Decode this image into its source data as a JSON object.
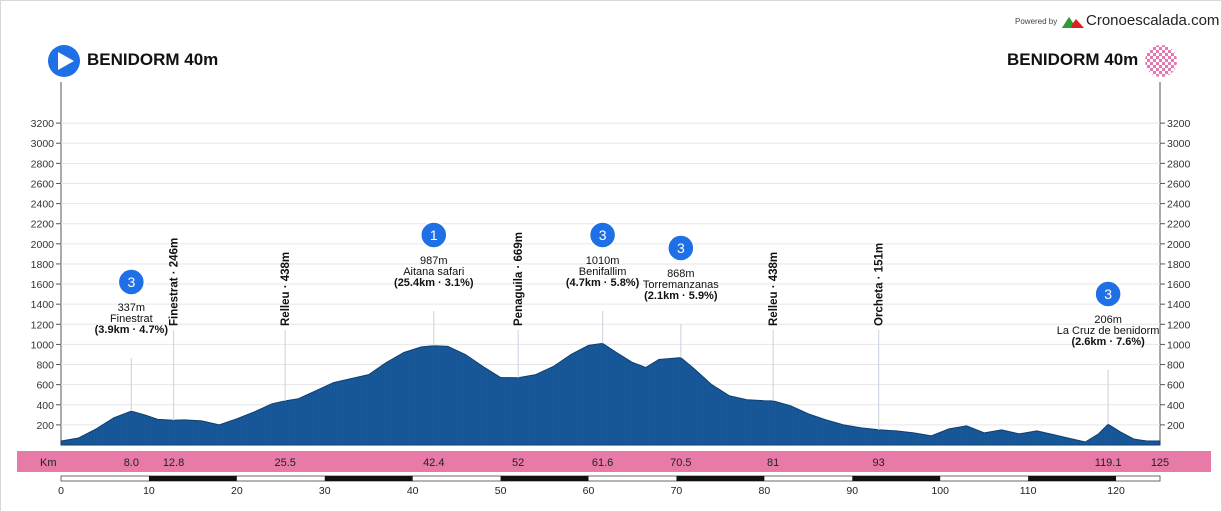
{
  "branding": {
    "powered_by": "Powered by",
    "brand": "Cronoescalada.com"
  },
  "start": {
    "label": "BENIDORM 40m"
  },
  "finish": {
    "label": "BENIDORM 40m"
  },
  "colors": {
    "profile": "#155596",
    "profile_dark": "#0b3c6e",
    "km_band": "#e87aa8",
    "badge": "#1f6fe6"
  },
  "icons": {
    "start": "play-circle-icon",
    "finish": "checkered-flag-icon",
    "climb": "category-badge"
  },
  "chart_data": {
    "type": "area",
    "xlabel": "Km",
    "xlim": [
      0,
      125
    ],
    "ylim": [
      0,
      3400
    ],
    "y_ticks": [
      200,
      400,
      600,
      800,
      1000,
      1200,
      1400,
      1600,
      1800,
      2000,
      2200,
      2400,
      2600,
      2800,
      3000,
      3200
    ],
    "x_scale_ticks": [
      0,
      10,
      20,
      30,
      40,
      50,
      60,
      70,
      80,
      90,
      100,
      110,
      120
    ],
    "km_labels": [
      "8.0",
      "12.8",
      "25.5",
      "42.4",
      "52",
      "61.6",
      "70.5",
      "81",
      "93",
      "119.1",
      "125"
    ],
    "profile": {
      "x": [
        0,
        2,
        4,
        6,
        8,
        9.5,
        11,
        12.8,
        14,
        16,
        18,
        20,
        22,
        24,
        25.5,
        27,
        29,
        31,
        33,
        35,
        37,
        39,
        41,
        42.4,
        44,
        46,
        48,
        50,
        52,
        54,
        56,
        58,
        60,
        61.6,
        63,
        65,
        66.5,
        68,
        70.5,
        72,
        74,
        76,
        78,
        80,
        81,
        83,
        85,
        87,
        89,
        91,
        93,
        95,
        97,
        99,
        101,
        103,
        105,
        107,
        109,
        111,
        113,
        115,
        116.5,
        118,
        119.1,
        120.5,
        122,
        123.5,
        125
      ],
      "y": [
        40,
        70,
        160,
        270,
        337,
        300,
        255,
        246,
        250,
        240,
        200,
        260,
        330,
        410,
        438,
        460,
        540,
        620,
        660,
        700,
        820,
        920,
        975,
        987,
        980,
        900,
        780,
        670,
        669,
        700,
        780,
        900,
        990,
        1010,
        930,
        820,
        770,
        850,
        868,
        760,
        600,
        490,
        450,
        440,
        438,
        390,
        310,
        250,
        200,
        170,
        151,
        140,
        120,
        90,
        160,
        190,
        120,
        150,
        110,
        140,
        100,
        60,
        30,
        110,
        206,
        130,
        60,
        40,
        40
      ]
    },
    "climbs": [
      {
        "km": 8.0,
        "category": "3",
        "altitude": "337m",
        "name": "Finestrat",
        "stats": "(3.9km · 4.7%)"
      },
      {
        "km": 42.4,
        "category": "1",
        "altitude": "987m",
        "name": "Aitana safari",
        "stats": "(25.4km · 3.1%)"
      },
      {
        "km": 61.6,
        "category": "3",
        "altitude": "1010m",
        "name": "Benifallim",
        "stats": "(4.7km · 5.8%)"
      },
      {
        "km": 70.5,
        "category": "3",
        "altitude": "868m",
        "name": "Torremanzanas",
        "stats": "(2.1km · 5.9%)"
      },
      {
        "km": 119.1,
        "category": "3",
        "altitude": "206m",
        "name": "La Cruz de benidorm",
        "stats": "(2.6km · 7.6%)"
      }
    ],
    "waypoints": [
      {
        "km": 12.8,
        "label": "Finestrat · 246m"
      },
      {
        "km": 25.5,
        "label": "Relleu · 438m"
      },
      {
        "km": 52,
        "label": "Penaguila · 669m"
      },
      {
        "km": 81,
        "label": "Relleu · 438m"
      },
      {
        "km": 93,
        "label": "Orcheta · 151m"
      }
    ]
  }
}
